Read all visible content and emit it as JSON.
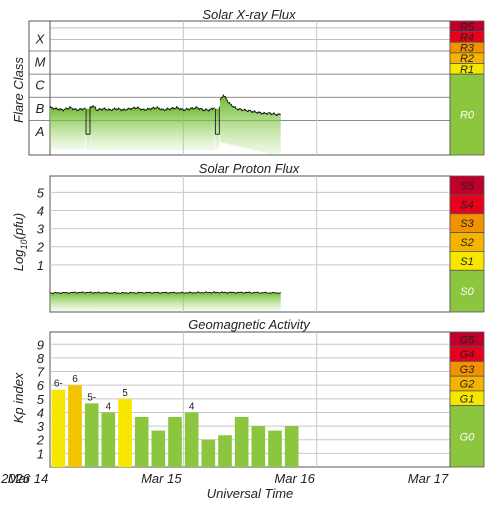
{
  "chart_data": [
    {
      "type": "area",
      "title": "Solar X-ray Flux",
      "ylabel": "Flare Class",
      "class_labels": [
        "A",
        "B",
        "C",
        "M",
        "X"
      ],
      "log_range": [
        -8.5,
        -2.7
      ],
      "x_unit": "days since 2026 Mar 14 00:00 UT",
      "x": [
        0.0,
        0.05,
        0.1,
        0.15,
        0.2,
        0.25,
        0.3,
        0.32,
        0.35,
        0.4,
        0.45,
        0.5,
        0.55,
        0.6,
        0.65,
        0.7,
        0.75,
        0.8,
        0.85,
        0.9,
        0.95,
        1.0,
        1.05,
        1.1,
        1.15,
        1.2,
        1.25,
        1.3,
        1.35,
        1.4,
        1.45,
        1.5,
        1.55,
        1.6,
        1.65,
        1.7,
        1.73
      ],
      "log_flux": [
        -6.45,
        -6.5,
        -6.55,
        -6.45,
        -6.55,
        -6.5,
        -6.5,
        -6.35,
        -6.55,
        -6.5,
        -6.55,
        -6.5,
        -6.55,
        -6.5,
        -6.45,
        -6.55,
        -6.5,
        -6.45,
        -6.55,
        -6.5,
        -6.45,
        -6.55,
        -6.5,
        -6.45,
        -6.55,
        -6.55,
        -6.4,
        -5.9,
        -6.3,
        -6.5,
        -6.55,
        -6.6,
        -6.65,
        -6.7,
        -6.7,
        -6.75,
        -6.75
      ],
      "dropouts": [
        [
          0.27,
          0.3
        ],
        [
          1.24,
          1.27
        ]
      ],
      "scale": [
        {
          "label": "R5",
          "color": "#c0002a"
        },
        {
          "label": "R4",
          "color": "#e8001c"
        },
        {
          "label": "R3",
          "color": "#f39200"
        },
        {
          "label": "R2",
          "color": "#f5b400"
        },
        {
          "label": "R1",
          "color": "#f6e600"
        },
        {
          "label": "R0",
          "color": "#8cc63f"
        }
      ]
    },
    {
      "type": "area",
      "title": "Solar Proton Flux",
      "ylabel": "Log10(pfu)",
      "yticks": [
        1,
        2,
        3,
        4,
        5
      ],
      "ylim": [
        -1.6,
        5.9
      ],
      "x_unit": "days since 2026 Mar 14 00:00 UT",
      "x": [
        0.0,
        0.25,
        0.5,
        0.75,
        1.0,
        1.25,
        1.5,
        1.73
      ],
      "log_flux": [
        -0.55,
        -0.52,
        -0.55,
        -0.53,
        -0.54,
        -0.52,
        -0.53,
        -0.55
      ],
      "scale": [
        {
          "label": "S5",
          "color": "#c0002a"
        },
        {
          "label": "S4",
          "color": "#e8001c"
        },
        {
          "label": "S3",
          "color": "#f39200"
        },
        {
          "label": "S2",
          "color": "#f5b400"
        },
        {
          "label": "S1",
          "color": "#f6e600"
        },
        {
          "label": "S0",
          "color": "#8cc63f"
        }
      ]
    },
    {
      "type": "bar",
      "title": "Geomagnetic Activity",
      "ylabel": "Kp index",
      "xlabel": "Universal Time",
      "yticks": [
        1,
        2,
        3,
        4,
        5,
        6,
        7,
        8,
        9
      ],
      "ylim": [
        0,
        9.9
      ],
      "bar_unit_hours": 3,
      "kp": [
        5.67,
        6.0,
        4.67,
        4.0,
        5.0,
        3.67,
        2.67,
        3.67,
        4.0,
        2.0,
        2.33,
        3.67,
        3.0,
        2.67,
        3.0
      ],
      "bar_labels": [
        "6-",
        "6",
        "5-",
        "4",
        "5",
        "",
        "",
        "",
        "4",
        "",
        "",
        "",
        "",
        "",
        ""
      ],
      "bar_colors": [
        "#f6e600",
        "#f5c400",
        "#8cc63f",
        "#8cc63f",
        "#f6e600",
        "#8cc63f",
        "#8cc63f",
        "#8cc63f",
        "#8cc63f",
        "#8cc63f",
        "#8cc63f",
        "#8cc63f",
        "#8cc63f",
        "#8cc63f",
        "#8cc63f"
      ],
      "scale": [
        {
          "label": "G5",
          "color": "#c0002a"
        },
        {
          "label": "G4",
          "color": "#e8001c"
        },
        {
          "label": "G3",
          "color": "#f39200"
        },
        {
          "label": "G2",
          "color": "#f5b400"
        },
        {
          "label": "G1",
          "color": "#f6e600"
        },
        {
          "label": "G0",
          "color": "#8cc63f"
        }
      ]
    }
  ],
  "x_axis": {
    "tick_days": [
      0,
      1,
      2,
      3
    ],
    "tick_labels": [
      "Mar 14",
      "Mar 15",
      "Mar 16",
      "Mar 17"
    ],
    "year_label": "2026",
    "xlabel": "Universal Time"
  }
}
